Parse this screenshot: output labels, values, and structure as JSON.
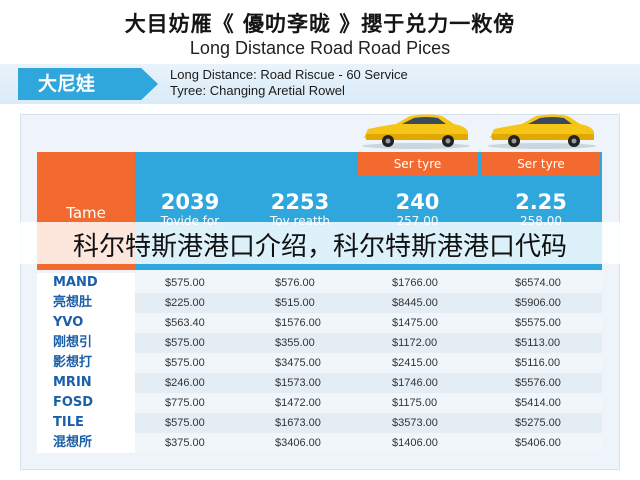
{
  "header": {
    "title_cn": "大目妨雁《 優叻斈昽 》攖于兑力一敉傍",
    "title_en": "Long Distance Road Road Pices"
  },
  "band": {
    "tag": "大尼娃",
    "line1": "Long Distance: Road Riscue - 60 Service",
    "line2": "Tyree: Changing Aretial Rowel"
  },
  "table": {
    "name_header": "Tame",
    "car_icon": "taxi-car-icon",
    "car_color": "#f5c518",
    "columns": [
      {
        "top": "",
        "big": "2039",
        "sub": "Tovide for"
      },
      {
        "top": "",
        "big": "2253",
        "sub": "Tov reatth"
      },
      {
        "top": "Ser tyre",
        "big": "240",
        "sub": "257.00"
      },
      {
        "top": "Ser tyre",
        "big": "2.25",
        "sub": "258.00"
      }
    ],
    "rows": [
      {
        "label": "MAND",
        "values": [
          "$575.00",
          "$576.00",
          "$1766.00",
          "$6574.00"
        ]
      },
      {
        "label": "亮想肚",
        "values": [
          "$225.00",
          "$515.00",
          "$8445.00",
          "$5906.00"
        ]
      },
      {
        "label": "YVO",
        "values": [
          "$563.40",
          "$1576.00",
          "$1475.00",
          "$5575.00"
        ]
      },
      {
        "label": "刚想引",
        "values": [
          "$575.00",
          "$355.00",
          "$1172.00",
          "$5113.00"
        ]
      },
      {
        "label": "影想打",
        "values": [
          "$575.00",
          "$3475.00",
          "$2415.00",
          "$5116.00"
        ]
      },
      {
        "label": "MRIN",
        "values": [
          "$246.00",
          "$1573.00",
          "$1746.00",
          "$5576.00"
        ]
      },
      {
        "label": "FOSD",
        "values": [
          "$775.00",
          "$1472.00",
          "$1175.00",
          "$5414.00"
        ]
      },
      {
        "label": "TILE",
        "values": [
          "$575.00",
          "$1673.00",
          "$3573.00",
          "$5275.00"
        ]
      },
      {
        "label": "混想所",
        "values": [
          "$375.00",
          "$3406.00",
          "$1406.00",
          "$5406.00"
        ]
      }
    ]
  },
  "overlay_caption": "科尔特斯港港口介绍，科尔特斯港港口代码",
  "colors": {
    "blue": "#2fa6dc",
    "orange": "#f26a2f"
  }
}
